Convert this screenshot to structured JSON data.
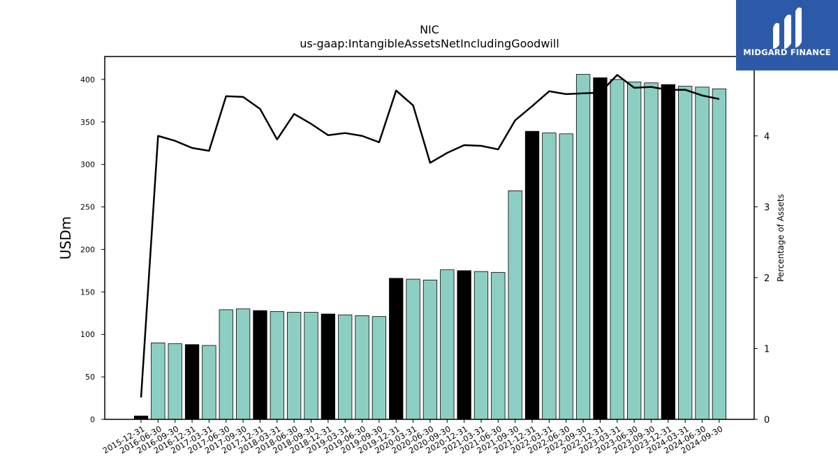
{
  "logo": {
    "text": "MIDGARD FINANCE",
    "background": "#2d5aa8"
  },
  "chart_data": {
    "type": "bar",
    "title": "NIC",
    "subtitle": "us-gaap:IntangibleAssetsNetIncludingGoodwill",
    "ylabel": "USDm",
    "y2label": "Percentage of Assets",
    "ylim": [
      0,
      427
    ],
    "y2lim": [
      0,
      5.12
    ],
    "yticks": [
      0,
      50,
      100,
      150,
      200,
      250,
      300,
      350,
      400
    ],
    "y2ticks": [
      0,
      1,
      2,
      3,
      4
    ],
    "grid": false,
    "colors": {
      "quarterly": "#8ccfc2",
      "annual": "#000000",
      "line": "#000000"
    },
    "categories": [
      "2015-12-31",
      "2016-06-30",
      "2016-09-30",
      "2016-12-31",
      "2017-03-31",
      "2017-06-30",
      "2017-09-30",
      "2017-12-31",
      "2018-03-31",
      "2018-06-30",
      "2018-09-30",
      "2018-12-31",
      "2019-03-31",
      "2019-06-30",
      "2019-09-30",
      "2019-12-31",
      "2020-03-31",
      "2020-06-30",
      "2020-09-30",
      "2020-12-31",
      "2021-03-31",
      "2021-06-30",
      "2021-09-30",
      "2021-12-31",
      "2022-03-31",
      "2022-06-30",
      "2022-09-30",
      "2022-12-31",
      "2023-03-31",
      "2023-06-30",
      "2023-09-30",
      "2023-12-31",
      "2024-03-31",
      "2024-06-30",
      "2024-09-30"
    ],
    "series": [
      {
        "values": [
          4,
          90,
          89,
          88,
          87,
          129,
          130,
          128,
          127,
          126,
          126,
          124,
          123,
          122,
          121,
          166,
          165,
          164,
          176,
          175,
          174,
          173,
          269,
          339,
          337,
          336,
          406,
          402,
          400,
          397,
          396,
          394,
          392,
          391,
          389
        ],
        "annual": [
          true,
          false,
          false,
          true,
          false,
          false,
          false,
          true,
          false,
          false,
          false,
          true,
          false,
          false,
          false,
          true,
          false,
          false,
          false,
          true,
          false,
          false,
          false,
          true,
          false,
          false,
          false,
          true,
          false,
          false,
          false,
          true,
          false,
          false,
          false
        ]
      },
      {
        "axis": "right",
        "type": "line",
        "values": [
          0.31,
          4.0,
          3.93,
          3.83,
          3.79,
          4.56,
          4.55,
          4.38,
          3.95,
          4.31,
          4.17,
          4.01,
          4.04,
          4.0,
          3.91,
          4.64,
          4.43,
          3.62,
          3.76,
          3.87,
          3.86,
          3.81,
          4.22,
          4.42,
          4.63,
          4.59,
          4.6,
          4.61,
          4.86,
          4.68,
          4.69,
          4.65,
          4.65,
          4.57,
          4.52
        ]
      }
    ]
  }
}
